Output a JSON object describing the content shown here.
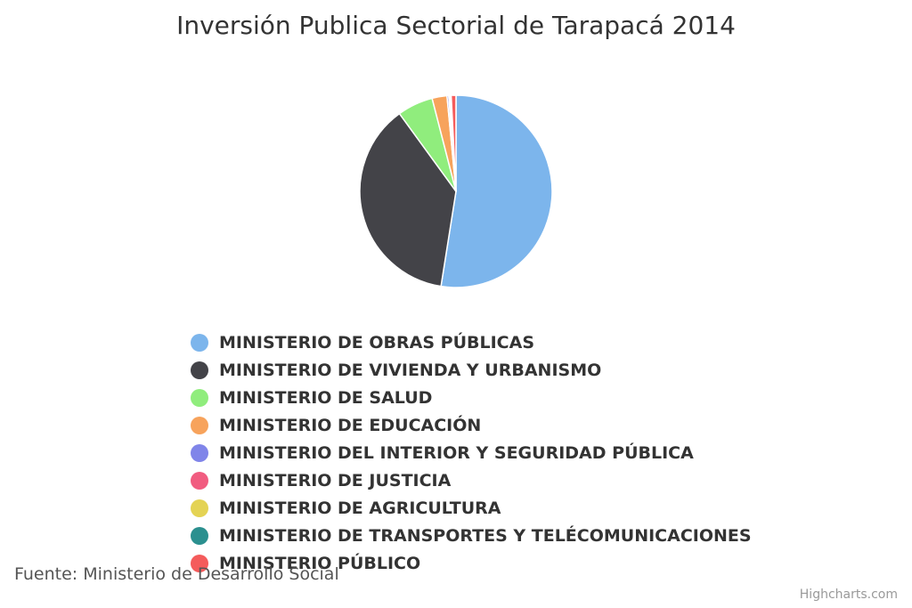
{
  "chart_data": {
    "type": "pie",
    "title": "Inversión Publica Sectorial de Tarapacá 2014",
    "legend_placement": "bottom",
    "series": [
      {
        "data": [
          {
            "label": "MINISTERIO DE OBRAS PÚBLICAS",
            "value": 52.5,
            "color": "#7cb5ec"
          },
          {
            "label": "MINISTERIO DE VIVIENDA Y URBANISMO",
            "value": 37.5,
            "color": "#434348"
          },
          {
            "label": "MINISTERIO DE SALUD",
            "value": 6.0,
            "color": "#90ed7d"
          },
          {
            "label": "MINISTERIO DE EDUCACIÓN",
            "value": 2.5,
            "color": "#f7a35c"
          },
          {
            "label": "MINISTERIO DEL INTERIOR Y SEGURIDAD PÚBLICA",
            "value": 0.3,
            "color": "#8085e9"
          },
          {
            "label": "MINISTERIO DE JUSTICIA",
            "value": 0.2,
            "color": "#f15c80"
          },
          {
            "label": "MINISTERIO DE AGRICULTURA",
            "value": 0.1,
            "color": "#e4d354"
          },
          {
            "label": "MINISTERIO DE TRANSPORTES Y TELÉCOMUNICACIONES",
            "value": 0.1,
            "color": "#2b908f"
          },
          {
            "label": "MINISTERIO PÚBLICO",
            "value": 0.8,
            "color": "#f45b5b"
          }
        ]
      }
    ]
  },
  "credits": "Fuente: Ministerio de Desarrollo Social",
  "branding": "Highcharts.com"
}
